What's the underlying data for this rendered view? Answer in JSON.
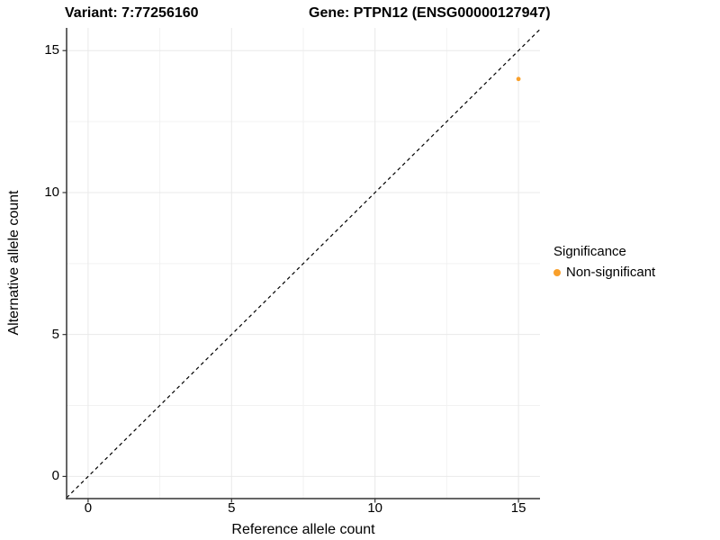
{
  "titles": {
    "variant": "Variant: 7:77256160",
    "gene": "Gene: PTPN12 (ENSG00000127947)"
  },
  "legend": {
    "title": "Significance",
    "items": [
      {
        "label": "Non-significant",
        "color": "#F9A02B"
      }
    ]
  },
  "colors": {
    "point_orange": "#F9A02B",
    "grid_major": "#E9E9E9",
    "grid_minor": "#F2F2F2",
    "axis_line": "#333333",
    "dashed_line": "#000000",
    "text": "#000000",
    "background": "#FFFFFF"
  },
  "chart_data": {
    "type": "scatter",
    "title": "Variant: 7:77256160   Gene: PTPN12 (ENSG00000127947)",
    "xlabel": "Reference allele count",
    "ylabel": "Alternative allele count",
    "xlim": [
      -0.75,
      15.75
    ],
    "ylim": [
      -0.78,
      15.8
    ],
    "x_ticks": [
      0,
      5,
      10,
      15
    ],
    "y_ticks": [
      0,
      5,
      10,
      15
    ],
    "x_minor_ticks": [
      2.5,
      7.5,
      12.5
    ],
    "y_minor_ticks": [
      2.5,
      7.5,
      12.5
    ],
    "grid": true,
    "legend_position": "right",
    "series": [
      {
        "name": "Non-significant",
        "color": "#F9A02B",
        "points": [
          {
            "x": 15,
            "y": 14
          }
        ]
      }
    ],
    "reference_line": {
      "type": "identity",
      "equation": "y = x",
      "style": "dashed",
      "color": "#000000"
    }
  }
}
